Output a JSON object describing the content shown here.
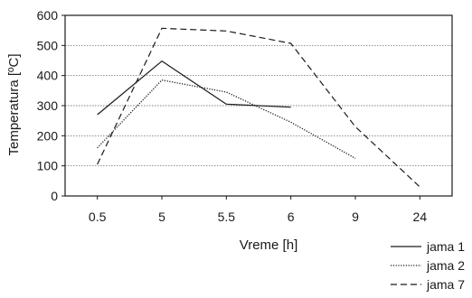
{
  "chart_data": {
    "type": "line",
    "xlabel": "Vreme [h]",
    "ylabel": "Temperatura [ºC]",
    "categories": [
      "0.5",
      "5",
      "5.5",
      "6",
      "9",
      "24"
    ],
    "ylim": [
      0,
      600
    ],
    "yticks": [
      0,
      100,
      200,
      300,
      400,
      500,
      600
    ],
    "grid": "horizontal dotted",
    "legend": "bottom-right",
    "series": [
      {
        "name": "jama 1",
        "style": "solid",
        "color": "#1a1a1a",
        "values": [
          270,
          448,
          305,
          295,
          null,
          null
        ]
      },
      {
        "name": "jama 2",
        "style": "dotted",
        "color": "#1a1a1a",
        "values": [
          160,
          385,
          345,
          245,
          125,
          null
        ]
      },
      {
        "name": "jama 7",
        "style": "dashed",
        "color": "#1a1a1a",
        "values": [
          105,
          557,
          548,
          507,
          230,
          30
        ]
      }
    ]
  }
}
